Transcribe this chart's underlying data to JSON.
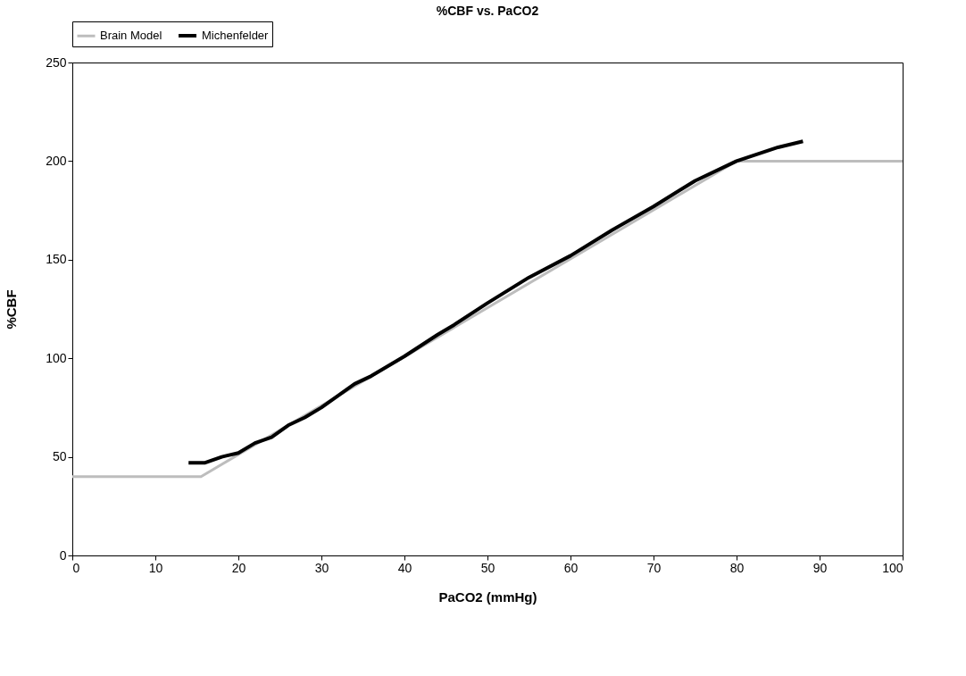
{
  "chart_data": {
    "type": "line",
    "title": "%CBF vs. PaCO2",
    "xlabel": "PaCO2 (mmHg)",
    "ylabel": "%CBF",
    "xlim": [
      0,
      100
    ],
    "xticks": [
      0,
      10,
      20,
      30,
      40,
      50,
      60,
      70,
      80,
      90,
      100
    ],
    "ylim": [
      0,
      250
    ],
    "yticks": [
      0,
      50,
      100,
      150,
      200,
      250
    ],
    "grid": false,
    "legend": "top",
    "line_style": "solid",
    "marker": "none",
    "series": [
      {
        "name": "Brain Model",
        "color": "#bdbdbd",
        "x": [
          0,
          15.5,
          80,
          100
        ],
        "values": [
          40,
          40,
          200,
          200
        ]
      },
      {
        "name": "Michenfelder",
        "color": "#000000",
        "x": [
          14,
          16,
          18,
          20,
          22,
          24,
          26,
          28,
          30,
          32,
          34,
          36,
          40,
          44,
          46,
          50,
          55,
          60,
          65,
          70,
          75,
          80,
          85,
          88
        ],
        "values": [
          47,
          47,
          50,
          52,
          57,
          60,
          66,
          70,
          75,
          81,
          87,
          91,
          101,
          112,
          117,
          128,
          141,
          152,
          165,
          177,
          190,
          200,
          207,
          210
        ]
      }
    ]
  }
}
